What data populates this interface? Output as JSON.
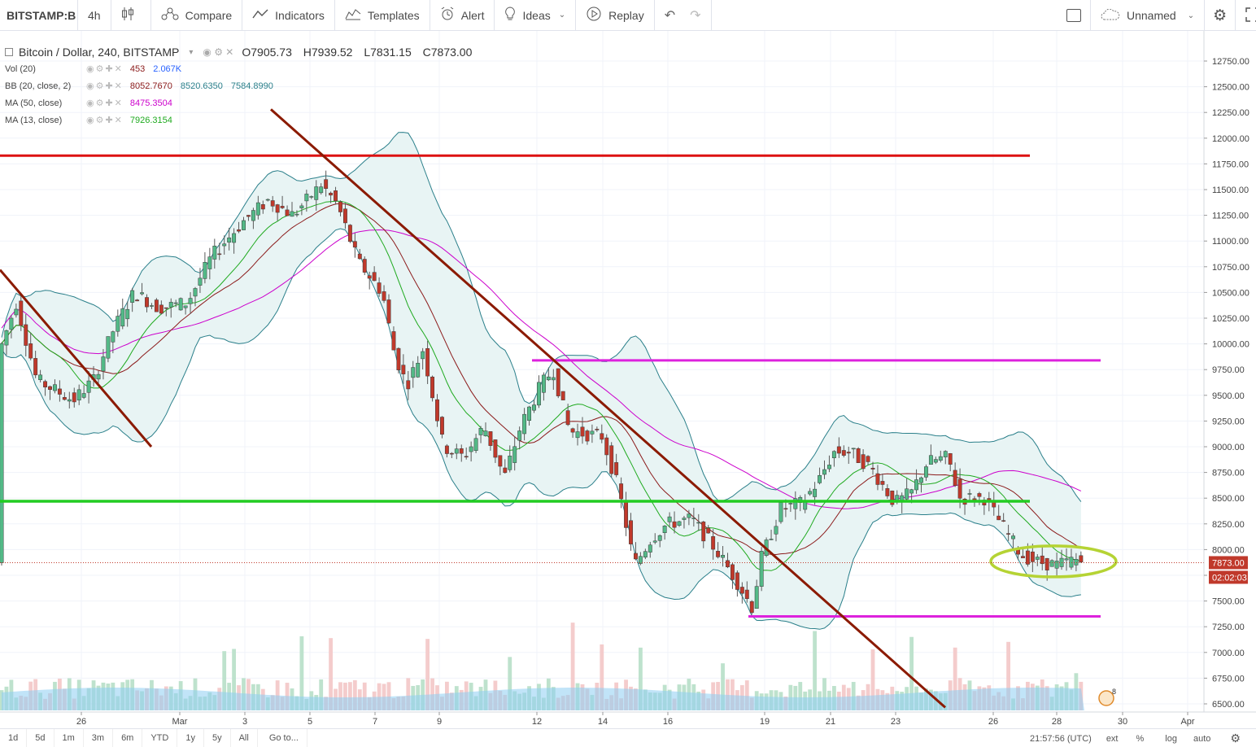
{
  "toolbar": {
    "symbol": "BITSTAMP:B",
    "interval": "4h",
    "compare": "Compare",
    "indicators": "Indicators",
    "templates": "Templates",
    "alert": "Alert",
    "ideas": "Ideas",
    "replay": "Replay",
    "layout_name": "Unnamed"
  },
  "legend": {
    "title": "Bitcoin / Dollar, 240, BITSTAMP",
    "open": "O7905.73",
    "high": "H7939.52",
    "low": "L7831.15",
    "close": "C7873.00",
    "studies": [
      {
        "name": "Vol (20)",
        "values": [
          "453",
          "2.067K"
        ],
        "colors": [
          "#8b1a1a",
          "#2962ff"
        ]
      },
      {
        "name": "BB (20, close, 2)",
        "values": [
          "8052.7670",
          "8520.6350",
          "7584.8990"
        ],
        "colors": [
          "#8b1a1a",
          "#2a7f8a",
          "#2a7f8a"
        ]
      },
      {
        "name": "MA (50, close)",
        "values": [
          "8475.3504"
        ],
        "colors": [
          "#cc00cc"
        ]
      },
      {
        "name": "MA (13, close)",
        "values": [
          "7926.3154"
        ],
        "colors": [
          "#1faa1f"
        ]
      }
    ]
  },
  "price_axis": {
    "labels": [
      "12750.00",
      "12500.00",
      "12250.00",
      "12000.00",
      "11750.00",
      "11500.00",
      "11250.00",
      "11000.00",
      "10750.00",
      "10500.00",
      "10250.00",
      "10000.00",
      "9750.00",
      "9500.00",
      "9250.00",
      "9000.00",
      "8750.00",
      "8500.00",
      "8250.00",
      "8000.00",
      "7750.00",
      "7500.00",
      "7250.00",
      "7000.00",
      "6750.00",
      "6500.00"
    ],
    "current_price": "7873.00",
    "countdown": "02:02:03",
    "current_color": "#c0392b"
  },
  "time_axis": {
    "labels": [
      "26",
      "Mar",
      "3",
      "5",
      "7",
      "9",
      "12",
      "14",
      "16",
      "19",
      "21",
      "23",
      "26",
      "28",
      "30",
      "Apr"
    ]
  },
  "bottom": {
    "ranges": [
      "1d",
      "5d",
      "1m",
      "3m",
      "6m",
      "YTD",
      "1y",
      "5y",
      "All"
    ],
    "goto": "Go to...",
    "clock": "21:57:56 (UTC)",
    "ext": "ext",
    "percent": "%",
    "log": "log",
    "auto": "auto"
  },
  "colors": {
    "up": "#53b987",
    "down": "#c0392b",
    "bb_fill": "#e8f4f4",
    "bb_line": "#2a7f8a",
    "ma13": "#1faa1f",
    "ma50": "#cc00cc",
    "bb_basis": "#8b1a1a",
    "resistance_red": "#dd1111",
    "magenta_line": "#dd22dd",
    "green_line": "#22cc22",
    "trend_brown": "#8b1a00",
    "ellipse": "#b5d334"
  }
}
